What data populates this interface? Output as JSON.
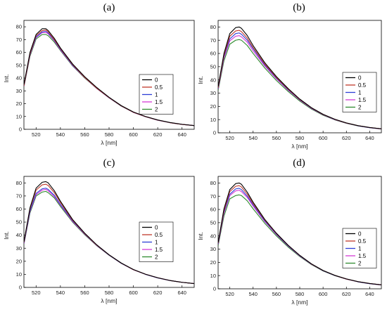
{
  "chart_data": [
    {
      "panel": "(a)",
      "type": "line",
      "xlabel": "λ [nm]",
      "ylabel": "Int.",
      "xlim": [
        510,
        650
      ],
      "ylim": [
        0,
        85
      ],
      "xticks": [
        520,
        540,
        560,
        580,
        600,
        620,
        640
      ],
      "yticks": [
        0,
        10,
        20,
        30,
        40,
        50,
        60,
        70,
        80
      ],
      "legend_position": "right",
      "x": [
        510,
        515,
        520,
        525,
        528,
        530,
        535,
        540,
        550,
        560,
        570,
        580,
        590,
        600,
        610,
        620,
        630,
        640,
        650
      ],
      "series": [
        {
          "name": "0",
          "color": "#000000",
          "values": [
            35,
            60,
            74,
            78.5,
            78.5,
            77,
            71,
            63.5,
            51,
            41,
            32.5,
            25,
            18.5,
            13.5,
            10,
            7.3,
            5.3,
            3.9,
            2.9
          ]
        },
        {
          "name": "0.5",
          "color": "#c0392b",
          "values": [
            34,
            59,
            73,
            77,
            77.5,
            76,
            70,
            63,
            50.5,
            40.5,
            32,
            24.8,
            18.3,
            13.3,
            9.9,
            7.2,
            5.2,
            3.8,
            2.9
          ]
        },
        {
          "name": "1",
          "color": "#2c3ed6",
          "values": [
            34,
            58.5,
            72,
            76,
            76.5,
            75,
            69.5,
            62.5,
            50,
            40.5,
            32,
            24.7,
            18.2,
            13.3,
            9.9,
            7.2,
            5.2,
            3.8,
            2.9
          ]
        },
        {
          "name": "1.5",
          "color": "#d63ad6",
          "values": [
            33.5,
            58,
            71.5,
            75.5,
            75.5,
            74.5,
            69,
            62,
            49.8,
            40.3,
            31.8,
            24.6,
            18.2,
            13.2,
            9.8,
            7.1,
            5.2,
            3.8,
            2.9
          ]
        },
        {
          "name": "2",
          "color": "#2e8b2e",
          "values": [
            33,
            57,
            70.5,
            74,
            74,
            73,
            68,
            61.5,
            49.5,
            40,
            31.7,
            24.5,
            18.1,
            13.2,
            9.8,
            7.1,
            5.2,
            3.8,
            2.9
          ]
        }
      ]
    },
    {
      "panel": "(b)",
      "type": "line",
      "xlabel": "λ [nm]",
      "ylabel": "Int.",
      "xlim": [
        510,
        650
      ],
      "ylim": [
        0,
        85
      ],
      "xticks": [
        520,
        540,
        560,
        580,
        600,
        620,
        640
      ],
      "yticks": [
        0,
        10,
        20,
        30,
        40,
        50,
        60,
        70,
        80
      ],
      "legend_position": "right",
      "x": [
        510,
        515,
        520,
        525,
        528,
        530,
        535,
        540,
        550,
        560,
        570,
        580,
        590,
        600,
        610,
        620,
        630,
        640,
        650
      ],
      "series": [
        {
          "name": "0",
          "color": "#000000",
          "values": [
            35,
            60,
            75,
            79.5,
            80,
            79,
            73.5,
            66,
            53,
            42.5,
            33.5,
            25.5,
            19,
            14,
            10.3,
            7.5,
            5.4,
            4,
            3
          ]
        },
        {
          "name": "0.5",
          "color": "#c0392b",
          "values": [
            34,
            58.5,
            73,
            77,
            77.5,
            76.5,
            71.5,
            64.5,
            52,
            41.8,
            33,
            25.2,
            18.8,
            13.8,
            10.2,
            7.4,
            5.4,
            4,
            3
          ]
        },
        {
          "name": "1",
          "color": "#2c3ed6",
          "values": [
            33.5,
            57.5,
            71,
            75,
            75.5,
            74.5,
            70,
            63.5,
            51.3,
            41.3,
            32.6,
            25,
            18.6,
            13.7,
            10.1,
            7.3,
            5.3,
            3.9,
            3
          ]
        },
        {
          "name": "1.5",
          "color": "#d63ad6",
          "values": [
            33,
            56.5,
            69.5,
            73,
            73.5,
            72.5,
            68.5,
            62,
            50.5,
            40.8,
            32.2,
            24.7,
            18.4,
            13.6,
            10,
            7.3,
            5.3,
            3.9,
            2.9
          ]
        },
        {
          "name": "2",
          "color": "#2e8b2e",
          "values": [
            32,
            54.5,
            67,
            70,
            70.5,
            70,
            66,
            60,
            49,
            39.5,
            31.3,
            24,
            18,
            13.3,
            9.8,
            7.2,
            5.2,
            3.9,
            2.9
          ]
        }
      ]
    },
    {
      "panel": "(c)",
      "type": "line",
      "xlabel": "λ [nm]",
      "ylabel": "Int.",
      "xlim": [
        510,
        650
      ],
      "ylim": [
        0,
        85
      ],
      "xticks": [
        520,
        540,
        560,
        580,
        600,
        620,
        640
      ],
      "yticks": [
        0,
        10,
        20,
        30,
        40,
        50,
        60,
        70,
        80
      ],
      "legend_position": "right",
      "x": [
        510,
        515,
        520,
        525,
        528,
        530,
        535,
        540,
        550,
        560,
        570,
        580,
        590,
        600,
        610,
        620,
        630,
        640,
        650
      ],
      "series": [
        {
          "name": "0",
          "color": "#000000",
          "values": [
            35,
            61,
            76,
            80.5,
            81,
            80,
            74,
            66,
            52,
            41.5,
            32.5,
            25,
            18.7,
            13.7,
            10.1,
            7.4,
            5.3,
            3.9,
            2.9
          ]
        },
        {
          "name": "0.5",
          "color": "#c0392b",
          "values": [
            34.5,
            60,
            74.5,
            78.5,
            79,
            78,
            72.5,
            65,
            51.5,
            41.2,
            32.3,
            24.9,
            18.6,
            13.6,
            10.1,
            7.4,
            5.3,
            3.9,
            2.9
          ]
        },
        {
          "name": "1",
          "color": "#2c3ed6",
          "values": [
            34,
            58.5,
            72,
            75.5,
            76,
            75,
            70.5,
            63.5,
            51,
            41,
            32.2,
            24.8,
            18.5,
            13.6,
            10,
            7.3,
            5.3,
            3.9,
            2.9
          ]
        },
        {
          "name": "1.5",
          "color": "#d63ad6",
          "values": [
            33.5,
            58,
            71,
            74.5,
            75,
            74,
            69.5,
            63,
            50.5,
            40.7,
            32,
            24.7,
            18.5,
            13.5,
            10,
            7.3,
            5.3,
            3.9,
            2.9
          ]
        },
        {
          "name": "2",
          "color": "#2e8b2e",
          "values": [
            33,
            57,
            70,
            73,
            73.5,
            72.5,
            68.5,
            62,
            50,
            40.3,
            31.8,
            24.6,
            18.4,
            13.5,
            10,
            7.3,
            5.3,
            3.9,
            2.9
          ]
        }
      ]
    },
    {
      "panel": "(d)",
      "type": "line",
      "xlabel": "λ [nm]",
      "ylabel": "Int.",
      "xlim": [
        510,
        650
      ],
      "ylim": [
        0,
        85
      ],
      "xticks": [
        520,
        540,
        560,
        580,
        600,
        620,
        640
      ],
      "yticks": [
        0,
        10,
        20,
        30,
        40,
        50,
        60,
        70,
        80
      ],
      "legend_position": "right",
      "x": [
        510,
        515,
        520,
        525,
        528,
        530,
        535,
        540,
        550,
        560,
        570,
        580,
        590,
        600,
        610,
        620,
        630,
        640,
        650
      ],
      "series": [
        {
          "name": "0",
          "color": "#000000",
          "values": [
            35,
            60.5,
            75,
            79.5,
            80,
            79,
            73,
            65.5,
            52.5,
            42,
            33,
            25.3,
            18.9,
            13.9,
            10.2,
            7.5,
            5.4,
            4,
            3
          ]
        },
        {
          "name": "0.5",
          "color": "#c0392b",
          "values": [
            34.5,
            59,
            73.5,
            77.5,
            78,
            77,
            71.5,
            64.5,
            52,
            41.7,
            32.8,
            25.2,
            18.8,
            13.8,
            10.2,
            7.4,
            5.4,
            4,
            3
          ]
        },
        {
          "name": "1",
          "color": "#2c3ed6",
          "values": [
            34,
            58,
            71.5,
            75.5,
            76,
            75,
            70,
            63.5,
            51.3,
            41.3,
            32.5,
            25,
            18.7,
            13.7,
            10.1,
            7.4,
            5.3,
            3.9,
            3
          ]
        },
        {
          "name": "1.5",
          "color": "#d63ad6",
          "values": [
            33.5,
            57,
            70.5,
            74,
            74.5,
            73.5,
            69,
            62.5,
            50.8,
            41,
            32.3,
            24.8,
            18.6,
            13.7,
            10.1,
            7.3,
            5.3,
            3.9,
            2.9
          ]
        },
        {
          "name": "2",
          "color": "#2e8b2e",
          "values": [
            32.5,
            55,
            68,
            70.5,
            71,
            70.5,
            66.5,
            60.5,
            49.5,
            40,
            31.6,
            24.4,
            18.3,
            13.5,
            10,
            7.3,
            5.3,
            3.9,
            2.9
          ]
        }
      ]
    }
  ]
}
